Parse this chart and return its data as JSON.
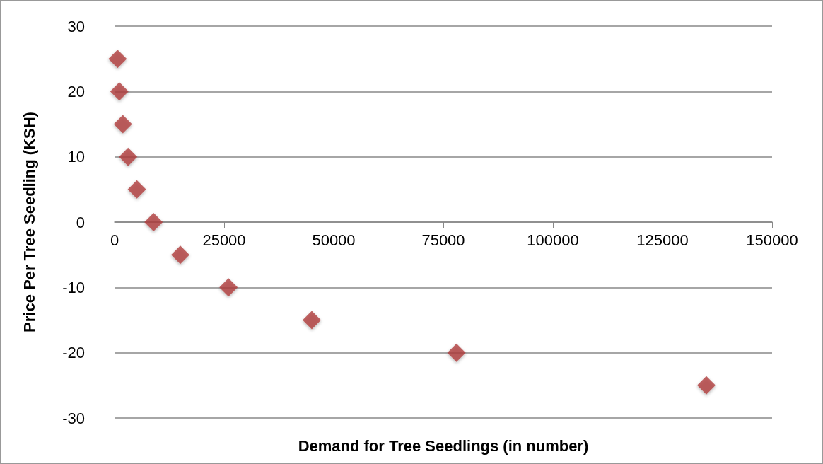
{
  "chart_data": {
    "type": "scatter",
    "xlabel": "Demand for Tree Seedlings (in number)",
    "ylabel": "Price Per Tree Seedling (KSH)",
    "x": [
      700,
      1100,
      1900,
      3100,
      5100,
      8900,
      15000,
      26000,
      45000,
      78000,
      135000
    ],
    "series": [
      {
        "color": "#b0403e",
        "values": [
          25,
          20,
          15,
          10,
          5,
          0,
          -5,
          -10,
          -15,
          -20,
          -25
        ]
      }
    ],
    "xlim": [
      0,
      150000
    ],
    "xticks": [
      0,
      25000,
      50000,
      75000,
      100000,
      125000,
      150000
    ],
    "ylim": [
      -30,
      30
    ],
    "yticks": [
      -30,
      -20,
      -10,
      0,
      10,
      20,
      30
    ],
    "grid": "y",
    "marker": "diamond"
  }
}
